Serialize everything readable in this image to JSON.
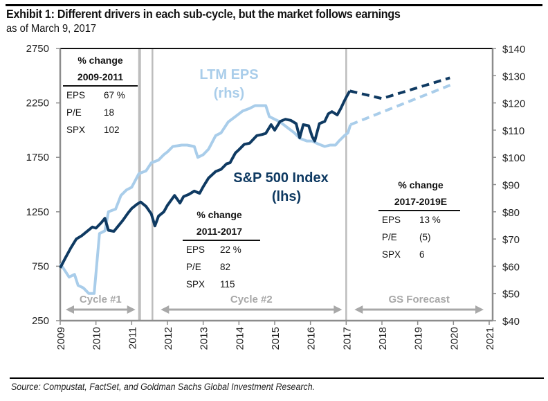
{
  "header": {
    "title": "Exhibit 1: Different drivers in each sub-cycle, but the market follows earnings",
    "subtitle": "as of March 9, 2017"
  },
  "footer": {
    "source": "Source: Compustat, FactSet, and Goldman Sachs Global Investment Research."
  },
  "colors": {
    "spx": "#0f3a62",
    "eps": "#a9cdea",
    "axis": "#8c8c8c",
    "divider": "#bdbdbd",
    "cycle_arrow": "#a8a8a8"
  },
  "chart_data": {
    "type": "line",
    "title": "Exhibit 1: Different drivers in each sub-cycle, but the market follows earnings",
    "subtitle": "as of March 9, 2017",
    "xlabel": "",
    "ylabel_left": "S&P 500 Index",
    "ylabel_right": "LTM EPS",
    "xlim": [
      2009,
      2021
    ],
    "ylim_left": [
      250,
      2750
    ],
    "ylim_right": [
      40,
      140
    ],
    "x_ticks": [
      "2009",
      "2010",
      "2011",
      "2012",
      "2013",
      "2014",
      "2015",
      "2016",
      "2017",
      "2018",
      "2019",
      "2020",
      "2021"
    ],
    "y_ticks_left": [
      "2750",
      "2250",
      "1750",
      "1250",
      "750",
      "250"
    ],
    "y_ticks_left_values": [
      2750,
      2250,
      1750,
      1250,
      750,
      250
    ],
    "y_ticks_right": [
      "$140",
      "$130",
      "$120",
      "$110",
      "$100",
      "$90",
      "$80",
      "$70",
      "$60",
      "$50",
      "$40"
    ],
    "y_ticks_right_values": [
      140,
      130,
      120,
      110,
      100,
      90,
      80,
      70,
      60,
      50,
      40
    ],
    "grid": false,
    "dividers": [
      2011.22,
      2011.58,
      2017.0
    ],
    "series": [
      {
        "name": "S&P 500 Index",
        "label_line1": "S&P 500 Index",
        "label_line2": "(lhs)",
        "axis": "left",
        "style": "solid",
        "x": [
          2009.0,
          2009.15,
          2009.3,
          2009.45,
          2009.6,
          2009.75,
          2009.9,
          2010.0,
          2010.15,
          2010.25,
          2010.35,
          2010.5,
          2010.6,
          2010.75,
          2010.9,
          2011.0,
          2011.15,
          2011.25,
          2011.4,
          2011.55,
          2011.65,
          2011.75,
          2011.9,
          2012.0,
          2012.2,
          2012.35,
          2012.45,
          2012.6,
          2012.75,
          2012.9,
          2013.0,
          2013.15,
          2013.35,
          2013.5,
          2013.65,
          2013.75,
          2013.9,
          2014.0,
          2014.15,
          2014.3,
          2014.5,
          2014.65,
          2014.75,
          2014.9,
          2015.0,
          2015.15,
          2015.3,
          2015.45,
          2015.6,
          2015.7,
          2015.8,
          2015.95,
          2016.05,
          2016.12,
          2016.25,
          2016.4,
          2016.5,
          2016.6,
          2016.75,
          2016.85,
          2016.95,
          2017.0,
          2017.1
        ],
        "values": [
          735,
          830,
          920,
          1000,
          1030,
          1070,
          1110,
          1100,
          1150,
          1190,
          1080,
          1070,
          1110,
          1170,
          1240,
          1280,
          1320,
          1340,
          1300,
          1230,
          1120,
          1210,
          1250,
          1310,
          1400,
          1330,
          1390,
          1410,
          1440,
          1420,
          1480,
          1560,
          1620,
          1640,
          1690,
          1700,
          1790,
          1820,
          1870,
          1880,
          1950,
          1960,
          1970,
          2050,
          2000,
          2080,
          2100,
          2090,
          2060,
          1930,
          2050,
          2040,
          1940,
          1900,
          2060,
          2080,
          2150,
          2170,
          2140,
          2200,
          2270,
          2300,
          2360
        ]
      },
      {
        "name": "S&P 500 Index (GS forecast)",
        "axis": "left",
        "style": "dashed",
        "x": [
          2017.1,
          2018.0,
          2019.9
        ],
        "values": [
          2360,
          2290,
          2480
        ]
      },
      {
        "name": "LTM EPS",
        "label_line1": "LTM EPS",
        "label_line2": "(rhs)",
        "axis": "right",
        "style": "solid",
        "x": [
          2009.0,
          2009.1,
          2009.25,
          2009.4,
          2009.5,
          2009.65,
          2009.8,
          2009.95,
          2010.1,
          2010.25,
          2010.35,
          2010.55,
          2010.7,
          2010.85,
          2011.0,
          2011.2,
          2011.4,
          2011.55,
          2011.75,
          2011.9,
          2012.0,
          2012.15,
          2012.4,
          2012.55,
          2012.75,
          2012.85,
          2013.0,
          2013.15,
          2013.35,
          2013.5,
          2013.7,
          2013.9,
          2014.1,
          2014.3,
          2014.45,
          2014.75,
          2014.85,
          2015.0,
          2015.15,
          2015.35,
          2015.55,
          2015.7,
          2015.9,
          2016.05,
          2016.2,
          2016.4,
          2016.55,
          2016.7,
          2016.8,
          2016.95,
          2017.05,
          2017.12
        ],
        "values": [
          61,
          59,
          56,
          57,
          53,
          52,
          50,
          50,
          72,
          73,
          80,
          81,
          86,
          88,
          89,
          94,
          95,
          98,
          99,
          101,
          102,
          104,
          104.5,
          104.5,
          104,
          100,
          101,
          103,
          108,
          109,
          113,
          115,
          117,
          118,
          119,
          119,
          115,
          114,
          113,
          111,
          109,
          107,
          106,
          106,
          105,
          104,
          104.5,
          104.5,
          106,
          108,
          109,
          112
        ]
      },
      {
        "name": "LTM EPS (GS forecast)",
        "axis": "right",
        "style": "dashed",
        "x": [
          2017.12,
          2020.0
        ],
        "values": [
          112,
          127
        ]
      }
    ],
    "annotations": {
      "boxes": [
        {
          "title": "% change",
          "period": "2009-2011",
          "rows": [
            {
              "label": "EPS",
              "value": "67 %"
            },
            {
              "label": "P/E",
              "value": "18"
            },
            {
              "label": "SPX",
              "value": "102"
            }
          ]
        },
        {
          "title": "% change",
          "period": "2011-2017",
          "rows": [
            {
              "label": "EPS",
              "value": "22 %"
            },
            {
              "label": "P/E",
              "value": "82"
            },
            {
              "label": "SPX",
              "value": "115"
            }
          ]
        },
        {
          "title": "% change",
          "period": "2017-2019E",
          "rows": [
            {
              "label": "EPS",
              "value": "13 %"
            },
            {
              "label": "P/E",
              "value": "(5)"
            },
            {
              "label": "SPX",
              "value": "6"
            }
          ]
        }
      ],
      "cycles": [
        {
          "label": "Cycle #1",
          "start": 2009.0,
          "end": 2011.22
        },
        {
          "label": "Cycle #2",
          "start": 2011.58,
          "end": 2017.0
        },
        {
          "label": "GS Forecast",
          "start": 2017.0,
          "end": 2021.0
        }
      ]
    }
  }
}
